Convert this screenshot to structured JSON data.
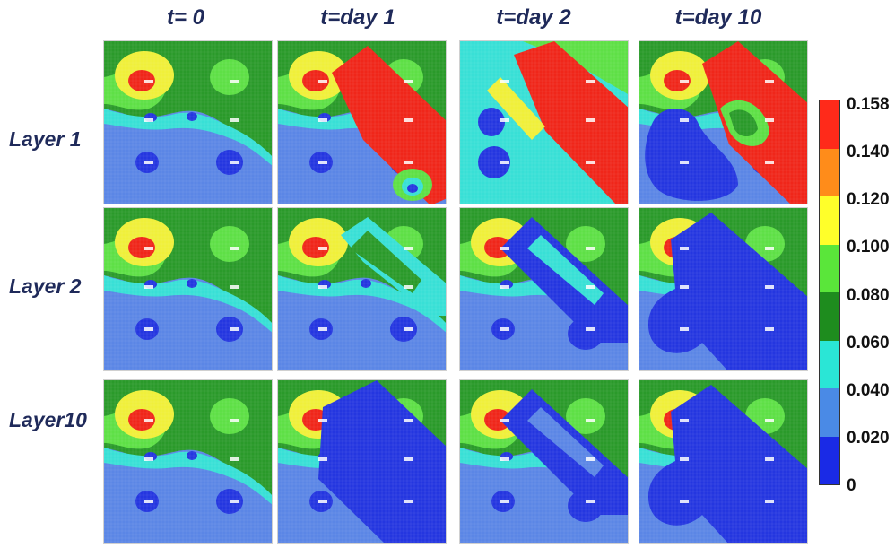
{
  "columns": [
    "t= 0",
    "t=day 1",
    "t=day 2",
    "t=day 10"
  ],
  "rows": [
    "Layer 1",
    "Layer 2",
    "Layer10"
  ],
  "legend": {
    "ticks": [
      "0.158",
      "0.140",
      "0.120",
      "0.100",
      "0.080",
      "0.060",
      "0.040",
      "0.020",
      "0"
    ],
    "colors": [
      "#ff2a1a",
      "#ff8c1a",
      "#ffff2a",
      "#5ae63a",
      "#1e8c1e",
      "#2ae6d6",
      "#4a8ae6",
      "#1a2ae6"
    ]
  },
  "palette": {
    "blue_dark": "#2436e0",
    "blue_mid": "#5b86e6",
    "cyan": "#38e0d6",
    "green_dark": "#2a9a2a",
    "green_light": "#5ee046",
    "yellow": "#f0f03a",
    "orange": "#ff8c1a",
    "red": "#f0261a"
  }
}
